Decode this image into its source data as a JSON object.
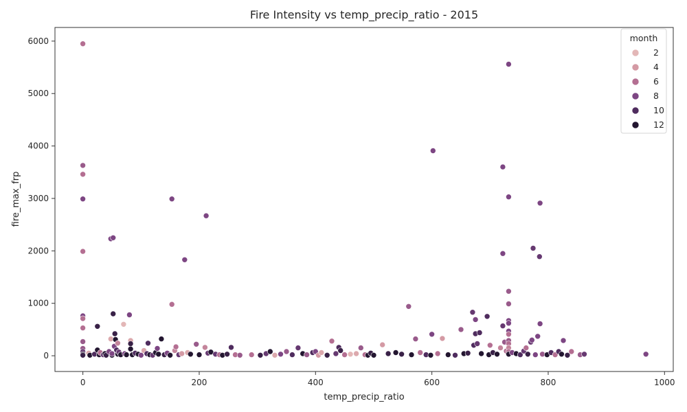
{
  "chart_data": {
    "type": "scatter",
    "title": "Fire Intensity vs temp_precip_ratio - 2015",
    "xlabel": "temp_precip_ratio",
    "ylabel": "fire_max_frp",
    "xlim": [
      -48,
      1015
    ],
    "ylim": [
      -300,
      6260
    ],
    "xticks": [
      0,
      200,
      400,
      600,
      800,
      1000
    ],
    "yticks": [
      0,
      1000,
      2000,
      3000,
      4000,
      5000,
      6000
    ],
    "grid": false,
    "legend": {
      "title": "month",
      "placement": "top-right",
      "entries": [
        {
          "label": "2",
          "month": 2
        },
        {
          "label": "4",
          "month": 4
        },
        {
          "label": "6",
          "month": 6
        },
        {
          "label": "8",
          "month": 8
        },
        {
          "label": "10",
          "month": 10
        },
        {
          "label": "12",
          "month": 12
        }
      ]
    },
    "hue": "month",
    "colorscale": [
      {
        "month": 1,
        "color": "#ebc6c0"
      },
      {
        "month": 4,
        "color": "#d49aa4"
      },
      {
        "month": 6,
        "color": "#b46f92"
      },
      {
        "month": 8,
        "color": "#7d4683"
      },
      {
        "month": 10,
        "color": "#4f2c5e"
      },
      {
        "month": 12,
        "color": "#231630"
      }
    ],
    "points": [
      [
        0,
        5950,
        6
      ],
      [
        0,
        3630,
        7
      ],
      [
        0,
        3460,
        6
      ],
      [
        0,
        2990,
        8
      ],
      [
        0,
        1990,
        6
      ],
      [
        0,
        760,
        8
      ],
      [
        0,
        710,
        6
      ],
      [
        0,
        530,
        6
      ],
      [
        0,
        270,
        7
      ],
      [
        0,
        140,
        7
      ],
      [
        0,
        80,
        9
      ],
      [
        0,
        30,
        12
      ],
      [
        0,
        10,
        11
      ],
      [
        10,
        50,
        3
      ],
      [
        12,
        10,
        12
      ],
      [
        20,
        30,
        10
      ],
      [
        25,
        560,
        11
      ],
      [
        25,
        110,
        12
      ],
      [
        28,
        20,
        12
      ],
      [
        30,
        60,
        6
      ],
      [
        35,
        20,
        9
      ],
      [
        38,
        40,
        12
      ],
      [
        40,
        10,
        11
      ],
      [
        45,
        80,
        8
      ],
      [
        48,
        320,
        3
      ],
      [
        48,
        2230,
        8
      ],
      [
        50,
        10,
        12
      ],
      [
        50,
        40,
        8
      ],
      [
        52,
        2250,
        8
      ],
      [
        52,
        800,
        11
      ],
      [
        54,
        180,
        8
      ],
      [
        55,
        420,
        11
      ],
      [
        56,
        310,
        12
      ],
      [
        58,
        110,
        10
      ],
      [
        60,
        240,
        5
      ],
      [
        60,
        30,
        12
      ],
      [
        62,
        70,
        9
      ],
      [
        65,
        20,
        12
      ],
      [
        70,
        600,
        2
      ],
      [
        72,
        40,
        8
      ],
      [
        75,
        20,
        12
      ],
      [
        80,
        780,
        8
      ],
      [
        82,
        290,
        3
      ],
      [
        82,
        230,
        11
      ],
      [
        82,
        130,
        12
      ],
      [
        85,
        20,
        12
      ],
      [
        90,
        50,
        10
      ],
      [
        95,
        30,
        12
      ],
      [
        100,
        10,
        8
      ],
      [
        105,
        100,
        3
      ],
      [
        110,
        40,
        10
      ],
      [
        112,
        240,
        10
      ],
      [
        115,
        20,
        12
      ],
      [
        120,
        10,
        9
      ],
      [
        125,
        60,
        12
      ],
      [
        128,
        140,
        8
      ],
      [
        130,
        30,
        12
      ],
      [
        135,
        320,
        12
      ],
      [
        140,
        20,
        11
      ],
      [
        145,
        50,
        8
      ],
      [
        150,
        10,
        12
      ],
      [
        153,
        2990,
        8
      ],
      [
        153,
        980,
        6
      ],
      [
        158,
        100,
        5
      ],
      [
        160,
        170,
        6
      ],
      [
        165,
        20,
        9
      ],
      [
        170,
        40,
        4
      ],
      [
        175,
        1830,
        8
      ],
      [
        180,
        60,
        3
      ],
      [
        185,
        30,
        12
      ],
      [
        195,
        220,
        7
      ],
      [
        200,
        20,
        12
      ],
      [
        210,
        160,
        5
      ],
      [
        212,
        2670,
        8
      ],
      [
        215,
        50,
        9
      ],
      [
        220,
        70,
        12
      ],
      [
        228,
        30,
        9
      ],
      [
        235,
        20,
        6
      ],
      [
        240,
        10,
        12
      ],
      [
        248,
        30,
        11
      ],
      [
        255,
        160,
        10
      ],
      [
        262,
        20,
        6
      ],
      [
        270,
        10,
        7
      ],
      [
        290,
        20,
        6
      ],
      [
        305,
        10,
        11
      ],
      [
        315,
        40,
        9
      ],
      [
        322,
        80,
        12
      ],
      [
        330,
        10,
        3
      ],
      [
        340,
        30,
        8
      ],
      [
        350,
        80,
        7
      ],
      [
        360,
        20,
        10
      ],
      [
        370,
        150,
        9
      ],
      [
        378,
        40,
        12
      ],
      [
        385,
        20,
        7
      ],
      [
        395,
        60,
        10
      ],
      [
        400,
        80,
        8
      ],
      [
        405,
        10,
        4
      ],
      [
        410,
        60,
        3
      ],
      [
        420,
        10,
        11
      ],
      [
        428,
        280,
        6
      ],
      [
        435,
        40,
        9
      ],
      [
        440,
        160,
        10
      ],
      [
        443,
        100,
        11
      ],
      [
        450,
        20,
        6
      ],
      [
        460,
        30,
        2
      ],
      [
        470,
        40,
        3
      ],
      [
        478,
        150,
        7
      ],
      [
        485,
        20,
        6
      ],
      [
        490,
        10,
        12
      ],
      [
        495,
        50,
        11
      ],
      [
        500,
        10,
        12
      ],
      [
        515,
        210,
        4
      ],
      [
        525,
        40,
        11
      ],
      [
        538,
        60,
        12
      ],
      [
        548,
        30,
        11
      ],
      [
        560,
        940,
        7
      ],
      [
        565,
        20,
        12
      ],
      [
        572,
        320,
        7
      ],
      [
        580,
        60,
        6
      ],
      [
        590,
        20,
        10
      ],
      [
        598,
        10,
        12
      ],
      [
        600,
        410,
        8
      ],
      [
        602,
        3910,
        8
      ],
      [
        610,
        40,
        6
      ],
      [
        618,
        330,
        4
      ],
      [
        628,
        20,
        12
      ],
      [
        640,
        10,
        10
      ],
      [
        650,
        500,
        7
      ],
      [
        655,
        40,
        12
      ],
      [
        662,
        50,
        11
      ],
      [
        670,
        830,
        9
      ],
      [
        672,
        200,
        10
      ],
      [
        675,
        690,
        8
      ],
      [
        675,
        420,
        10
      ],
      [
        678,
        230,
        9
      ],
      [
        682,
        440,
        10
      ],
      [
        685,
        40,
        12
      ],
      [
        695,
        750,
        10
      ],
      [
        698,
        20,
        12
      ],
      [
        700,
        200,
        6
      ],
      [
        705,
        60,
        11
      ],
      [
        712,
        30,
        12
      ],
      [
        718,
        150,
        5
      ],
      [
        722,
        3600,
        8
      ],
      [
        722,
        1950,
        8
      ],
      [
        722,
        570,
        9
      ],
      [
        725,
        260,
        7
      ],
      [
        728,
        90,
        6
      ],
      [
        732,
        5560,
        8
      ],
      [
        732,
        3030,
        8
      ],
      [
        732,
        1230,
        7
      ],
      [
        732,
        990,
        7
      ],
      [
        732,
        670,
        8
      ],
      [
        732,
        620,
        8
      ],
      [
        732,
        470,
        8
      ],
      [
        732,
        410,
        6
      ],
      [
        732,
        290,
        7
      ],
      [
        732,
        230,
        6
      ],
      [
        732,
        150,
        5
      ],
      [
        732,
        80,
        6
      ],
      [
        732,
        30,
        12
      ],
      [
        738,
        60,
        8
      ],
      [
        745,
        40,
        12
      ],
      [
        752,
        20,
        10
      ],
      [
        758,
        90,
        9
      ],
      [
        762,
        150,
        6
      ],
      [
        765,
        30,
        11
      ],
      [
        770,
        260,
        9
      ],
      [
        772,
        300,
        8
      ],
      [
        774,
        2050,
        9
      ],
      [
        778,
        20,
        8
      ],
      [
        782,
        370,
        8
      ],
      [
        785,
        1890,
        9
      ],
      [
        786,
        2910,
        8
      ],
      [
        786,
        610,
        8
      ],
      [
        790,
        30,
        7
      ],
      [
        798,
        20,
        12
      ],
      [
        805,
        60,
        10
      ],
      [
        812,
        20,
        6
      ],
      [
        818,
        80,
        10
      ],
      [
        823,
        30,
        12
      ],
      [
        826,
        290,
        8
      ],
      [
        833,
        10,
        11
      ],
      [
        840,
        80,
        6
      ],
      [
        855,
        20,
        7
      ],
      [
        862,
        30,
        9
      ],
      [
        968,
        30,
        8
      ]
    ]
  }
}
